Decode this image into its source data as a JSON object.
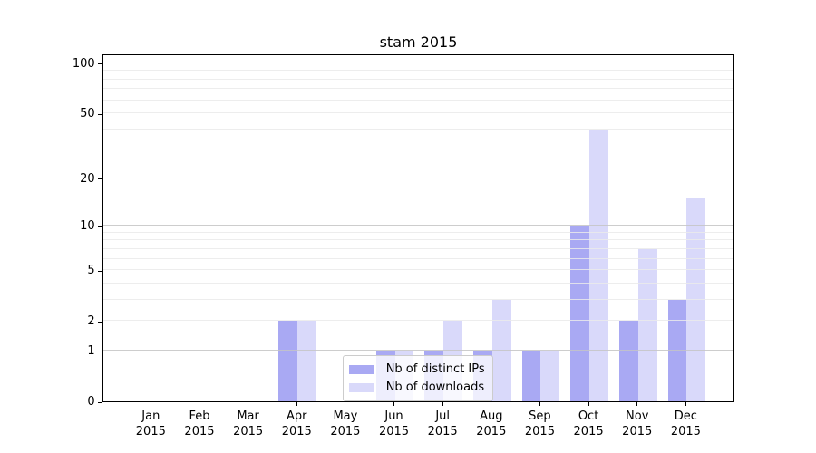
{
  "chart_data": {
    "type": "bar",
    "title": "stam 2015",
    "categories": [
      "Jan",
      "Feb",
      "Mar",
      "Apr",
      "May",
      "Jun",
      "Jul",
      "Aug",
      "Sep",
      "Oct",
      "Nov",
      "Dec"
    ],
    "year_label": "2015",
    "series": [
      {
        "name": "Nb of distinct IPs",
        "color": "#a9a9f3",
        "values": [
          0,
          0,
          0,
          2,
          0,
          1,
          1,
          1,
          1,
          10,
          2,
          3
        ]
      },
      {
        "name": "Nb of downloads",
        "color": "#d9d9fa",
        "values": [
          0,
          0,
          0,
          2,
          0,
          1,
          2,
          3,
          1,
          40,
          7,
          15
        ]
      }
    ],
    "yscale": "log1p",
    "yticks": [
      0,
      1,
      2,
      5,
      10,
      20,
      50,
      100
    ],
    "minor_gridlines": [
      2,
      3,
      4,
      5,
      6,
      7,
      8,
      9,
      20,
      30,
      40,
      50,
      60,
      70,
      80,
      90
    ],
    "major_gridlines": [
      1,
      10,
      100
    ],
    "ylim": [
      0,
      115
    ],
    "grid": true,
    "legend_position": "lower center",
    "colors": {
      "axis": "#000000",
      "major_grid": "#c4c4c4",
      "minor_grid": "#eaeaea",
      "legend_border": "#cccccc"
    }
  }
}
